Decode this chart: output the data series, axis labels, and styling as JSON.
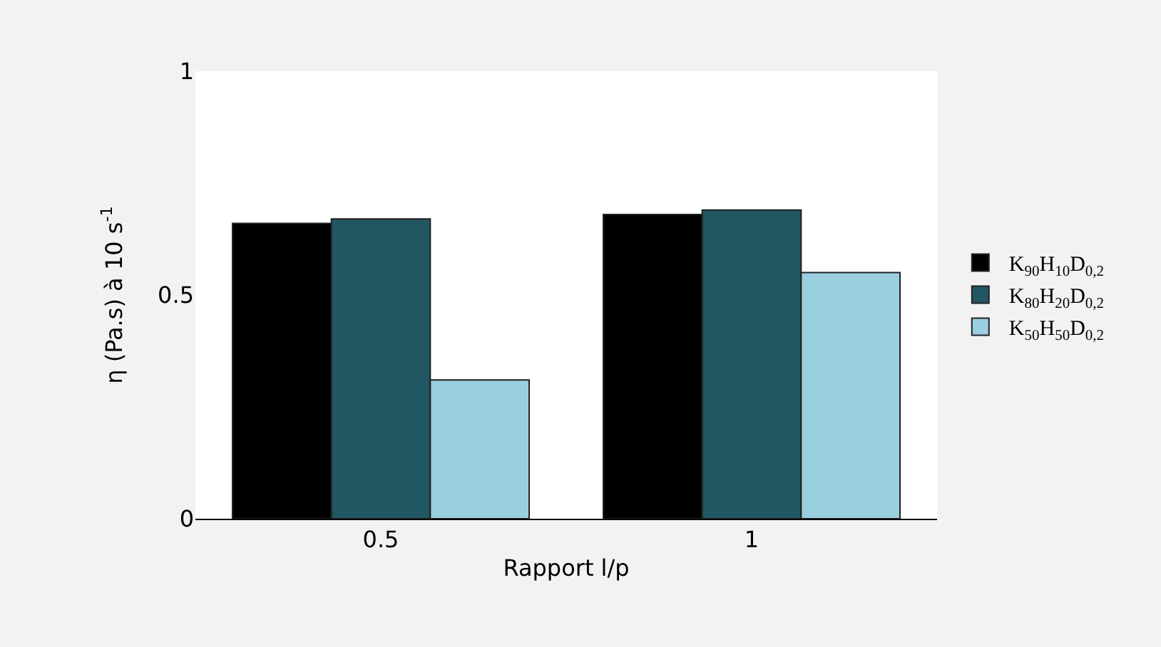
{
  "chart_data": {
    "type": "bar",
    "xlabel": "Rapport l/p",
    "ylabel": "η (Pa.s) à 10 s$^{-1}$",
    "categories": [
      "0.5",
      "1"
    ],
    "series": [
      {
        "name": "K$_{90}$H$_{10}$D$_{0,2}$",
        "color": "#000000",
        "values": [
          0.66,
          0.68
        ]
      },
      {
        "name": "K$_{80}$H$_{20}$D$_{0,2}$",
        "color": "#215663",
        "values": [
          0.67,
          0.69
        ]
      },
      {
        "name": "K$_{50}$H$_{50}$D$_{0,2}$",
        "color": "#9acfe0",
        "values": [
          0.31,
          0.55
        ]
      }
    ],
    "ylim": [
      0,
      1
    ],
    "yticks": [
      0,
      0.5,
      1
    ],
    "grid": false,
    "legend": "right"
  }
}
